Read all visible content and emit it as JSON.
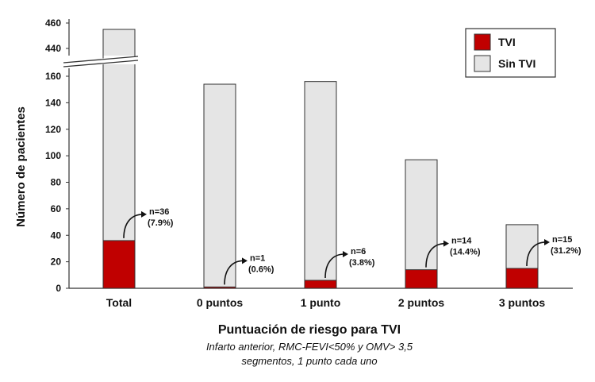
{
  "chart_data": {
    "type": "bar",
    "stacked": true,
    "categories": [
      "Total",
      "0 puntos",
      "1 punto",
      "2 puntos",
      "3 puntos"
    ],
    "series": [
      {
        "name": "TVI",
        "color": "#c00000",
        "values": [
          36,
          1,
          6,
          14,
          15
        ]
      },
      {
        "name": "Sin TVI",
        "color": "#e5e5e5",
        "values": [
          419,
          153,
          150,
          83,
          33
        ]
      }
    ],
    "totals": [
      455,
      154,
      156,
      97,
      48
    ],
    "annotations": [
      {
        "n": "n=36",
        "pct": "(7.9%)"
      },
      {
        "n": "n=1",
        "pct": "(0.6%)"
      },
      {
        "n": "n=6",
        "pct": "(3.8%)"
      },
      {
        "n": "n=14",
        "pct": "(14.4%)"
      },
      {
        "n": "n=15",
        "pct": "(31.2%)"
      }
    ],
    "ylabel": "Número de pacientes",
    "xlabel": "Puntuación de riesgo para TVI",
    "subtitle_line1": "Infarto anterior, RMC-FEVI<50% y OMV> 3,5",
    "subtitle_line2": "segmentos, 1 punto cada uno",
    "yticks_lower": [
      0,
      20,
      40,
      60,
      80,
      100,
      120,
      140,
      160
    ],
    "yticks_upper": [
      440,
      460
    ],
    "ylim_lower": [
      0,
      160
    ],
    "ylim_upper": [
      440,
      460
    ],
    "axis_break": true,
    "legend_position": "top-right",
    "grid": false
  }
}
